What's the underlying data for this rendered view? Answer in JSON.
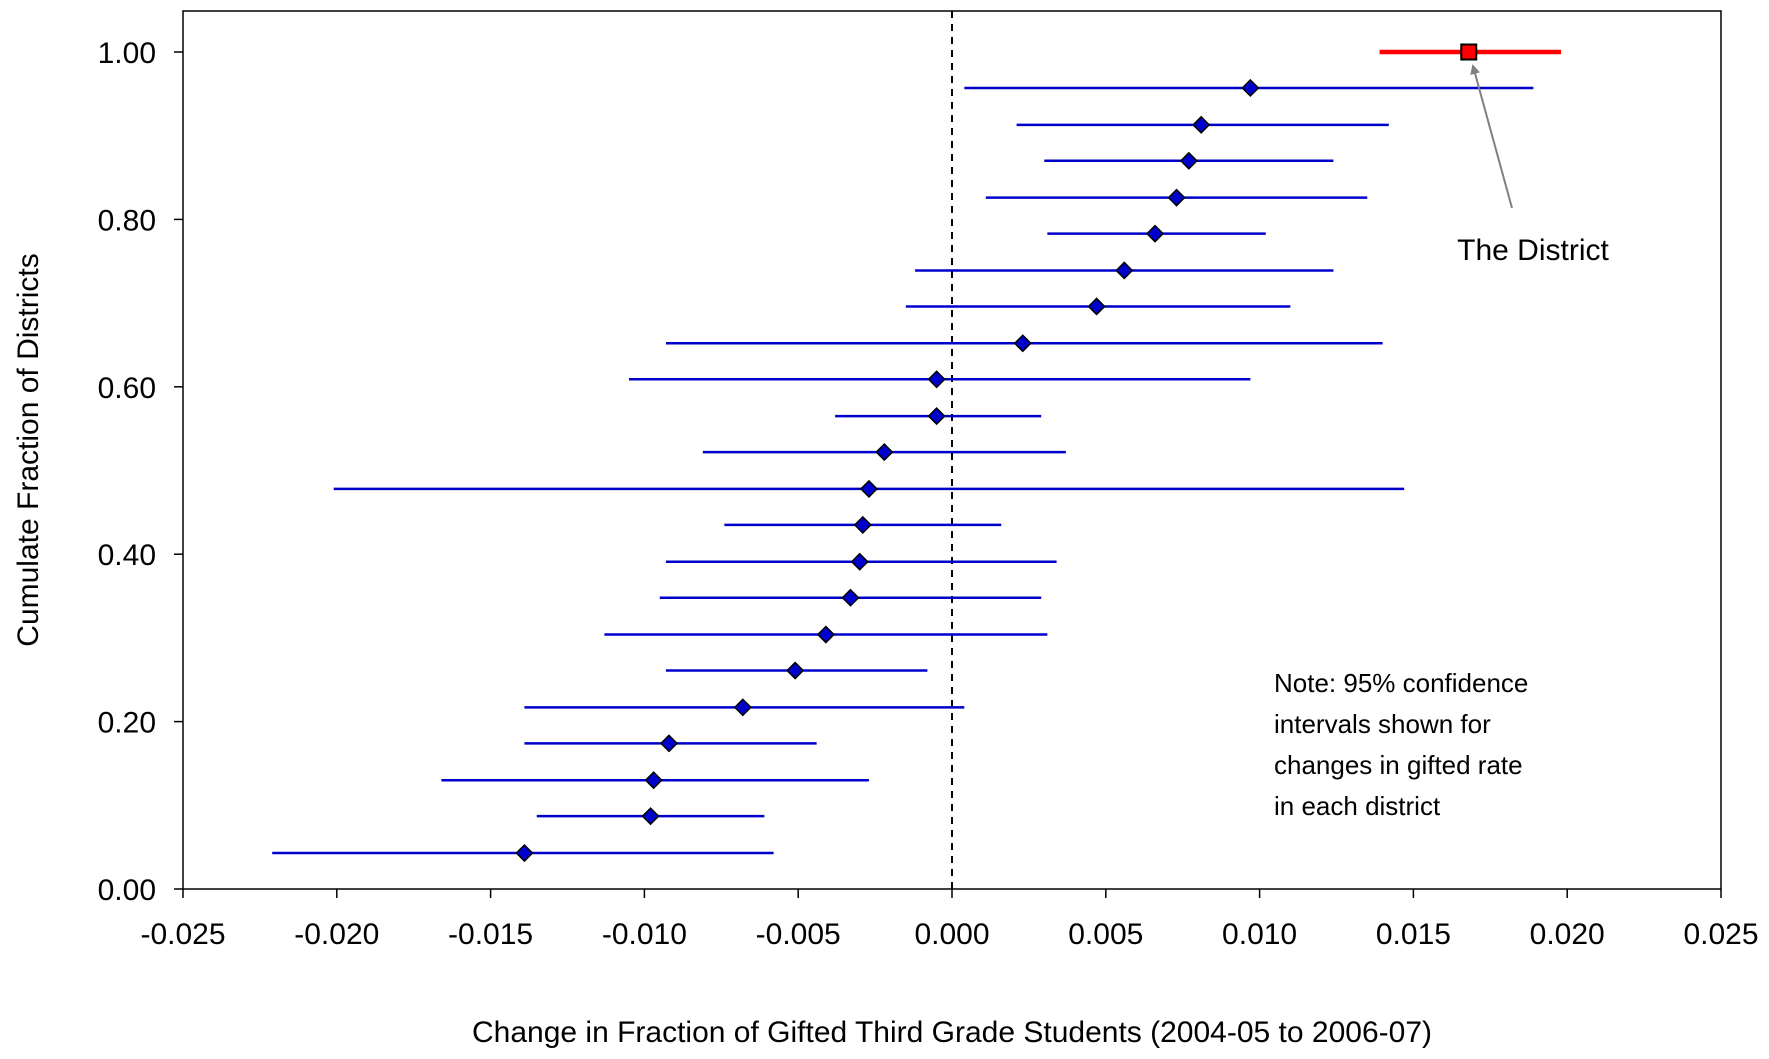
{
  "chart_data": {
    "type": "scatter",
    "xlabel": "Change in Fraction of Gifted Third Grade Students (2004-05 to 2006-07)",
    "ylabel": "Cumulate Fraction of Districts",
    "xlim": [
      -0.025,
      0.025
    ],
    "ylim": [
      0.0,
      1.05
    ],
    "x_ticks": [
      "-0.025",
      "-0.020",
      "-0.015",
      "-0.010",
      "-0.005",
      "0.000",
      "0.005",
      "0.010",
      "0.015",
      "0.020",
      "0.025"
    ],
    "x_tick_values": [
      -0.025,
      -0.02,
      -0.015,
      -0.01,
      -0.005,
      0.0,
      0.005,
      0.01,
      0.015,
      0.02,
      0.025
    ],
    "y_ticks": [
      "0.00",
      "0.20",
      "0.40",
      "0.60",
      "0.80",
      "1.00"
    ],
    "y_tick_values": [
      0.0,
      0.2,
      0.4,
      0.6,
      0.8,
      1.0
    ],
    "reference_line_x": 0.0,
    "grid": false,
    "legend": "none",
    "colors": {
      "districts": "#0000cc",
      "district_highlight": "#ff0000",
      "arrow": "#808080"
    },
    "series": [
      {
        "points": [
          {
            "x": -0.0139,
            "y": 0.043,
            "lo": -0.0221,
            "hi": -0.0058
          },
          {
            "x": -0.0098,
            "y": 0.087,
            "lo": -0.0135,
            "hi": -0.0061
          },
          {
            "x": -0.0097,
            "y": 0.13,
            "lo": -0.0166,
            "hi": -0.0027
          },
          {
            "x": -0.0092,
            "y": 0.174,
            "lo": -0.0139,
            "hi": -0.0044
          },
          {
            "x": -0.0068,
            "y": 0.217,
            "lo": -0.0139,
            "hi": 0.0004
          },
          {
            "x": -0.0051,
            "y": 0.261,
            "lo": -0.0093,
            "hi": -0.0008
          },
          {
            "x": -0.0041,
            "y": 0.304,
            "lo": -0.0113,
            "hi": 0.0031
          },
          {
            "x": -0.0033,
            "y": 0.348,
            "lo": -0.0095,
            "hi": 0.0029
          },
          {
            "x": -0.003,
            "y": 0.391,
            "lo": -0.0093,
            "hi": 0.0034
          },
          {
            "x": -0.0029,
            "y": 0.435,
            "lo": -0.0074,
            "hi": 0.0016
          },
          {
            "x": -0.0027,
            "y": 0.478,
            "lo": -0.0201,
            "hi": 0.0147
          },
          {
            "x": -0.0022,
            "y": 0.522,
            "lo": -0.0081,
            "hi": 0.0037
          },
          {
            "x": -0.0005,
            "y": 0.565,
            "lo": -0.0038,
            "hi": 0.0029
          },
          {
            "x": -0.0005,
            "y": 0.609,
            "lo": -0.0105,
            "hi": 0.0097
          },
          {
            "x": 0.0023,
            "y": 0.652,
            "lo": -0.0093,
            "hi": 0.014
          },
          {
            "x": 0.0047,
            "y": 0.696,
            "lo": -0.0015,
            "hi": 0.011
          },
          {
            "x": 0.0056,
            "y": 0.739,
            "lo": -0.0012,
            "hi": 0.0124
          },
          {
            "x": 0.0066,
            "y": 0.783,
            "lo": 0.0031,
            "hi": 0.0102
          },
          {
            "x": 0.0073,
            "y": 0.826,
            "lo": 0.0011,
            "hi": 0.0135
          },
          {
            "x": 0.0077,
            "y": 0.87,
            "lo": 0.003,
            "hi": 0.0124
          },
          {
            "x": 0.0081,
            "y": 0.913,
            "lo": 0.0021,
            "hi": 0.0142
          },
          {
            "x": 0.0097,
            "y": 0.957,
            "lo": 0.0004,
            "hi": 0.0189
          }
        ]
      },
      {
        "points": [
          {
            "x": 0.0168,
            "y": 1.0,
            "lo": 0.0139,
            "hi": 0.0198
          }
        ]
      }
    ],
    "annotations": {
      "district_label": "The District",
      "note_lines": [
        "Note: 95% confidence",
        "intervals shown for",
        "changes in gifted rate",
        "in each district"
      ]
    }
  }
}
